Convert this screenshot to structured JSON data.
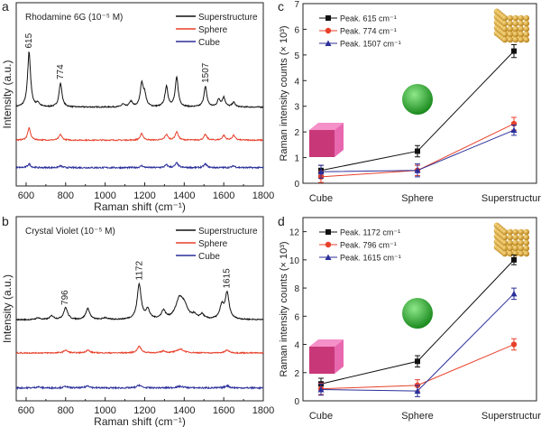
{
  "colors": {
    "superstructure": "#111111",
    "sphere": "#e8412b",
    "cube": "#2b2f9a",
    "axis": "#222222"
  },
  "chart_data": [
    {
      "panel": "a",
      "type": "line",
      "title": "Rhodamine 6G (10⁻⁵ M)",
      "xlabel": "Raman shift (cm⁻¹)",
      "ylabel": "Intensity (a.u.)",
      "xlim": [
        550,
        1800
      ],
      "ylim": [
        0,
        1
      ],
      "xticks": [
        "600",
        "800",
        "1000",
        "1200",
        "1400",
        "1600",
        "1800"
      ],
      "legend": "top-right",
      "annotations": [
        "615",
        "774",
        "1507"
      ],
      "series": [
        {
          "name": "Superstructure",
          "baseline": 0.43,
          "peaks": [
            [
              615,
              0.3
            ],
            [
              660,
              0.02
            ],
            [
              774,
              0.13
            ],
            [
              1090,
              0.015
            ],
            [
              1130,
              0.03
            ],
            [
              1185,
              0.125
            ],
            [
              1200,
              0.06
            ],
            [
              1310,
              0.11
            ],
            [
              1362,
              0.16
            ],
            [
              1507,
              0.11
            ],
            [
              1575,
              0.04
            ],
            [
              1600,
              0.05
            ],
            [
              1650,
              0.025
            ]
          ]
        },
        {
          "name": "Sphere",
          "baseline": 0.25,
          "peaks": [
            [
              615,
              0.065
            ],
            [
              774,
              0.03
            ],
            [
              1185,
              0.035
            ],
            [
              1310,
              0.03
            ],
            [
              1362,
              0.045
            ],
            [
              1507,
              0.03
            ],
            [
              1600,
              0.025
            ],
            [
              1650,
              0.025
            ]
          ]
        },
        {
          "name": "Cube",
          "baseline": 0.1,
          "peaks": [
            [
              615,
              0.02
            ],
            [
              774,
              0.01
            ],
            [
              1185,
              0.01
            ],
            [
              1310,
              0.015
            ],
            [
              1362,
              0.025
            ],
            [
              1507,
              0.02
            ],
            [
              1650,
              0.01
            ]
          ]
        }
      ]
    },
    {
      "panel": "b",
      "type": "line",
      "title": "Crystal Violet (10⁻⁵ M)",
      "xlabel": "Raman shift (cm⁻¹)",
      "ylabel": "Intensity (a.u.)",
      "xlim": [
        550,
        1800
      ],
      "ylim": [
        0,
        1
      ],
      "xticks": [
        "600",
        "800",
        "1000",
        "1200",
        "1400",
        "1600",
        "1800"
      ],
      "legend": "top-right",
      "annotations": [
        "796",
        "1172",
        "1615"
      ],
      "series": [
        {
          "name": "Superstructure",
          "baseline": 0.44,
          "peaks": [
            [
              660,
              0.01
            ],
            [
              730,
              0.02
            ],
            [
              800,
              0.065
            ],
            [
              912,
              0.06
            ],
            [
              1000,
              0.01
            ],
            [
              1172,
              0.19
            ],
            [
              1215,
              0.05
            ],
            [
              1295,
              0.045
            ],
            [
              1375,
              0.1
            ],
            [
              1400,
              0.06
            ],
            [
              1450,
              0.02
            ],
            [
              1490,
              0.025
            ],
            [
              1590,
              0.07
            ],
            [
              1617,
              0.14
            ]
          ]
        },
        {
          "name": "Sphere",
          "baseline": 0.26,
          "peaks": [
            [
              800,
              0.015
            ],
            [
              912,
              0.015
            ],
            [
              1172,
              0.035
            ],
            [
              1295,
              0.01
            ],
            [
              1380,
              0.02
            ],
            [
              1617,
              0.015
            ]
          ]
        },
        {
          "name": "Cube",
          "baseline": 0.07,
          "peaks": [
            [
              660,
              0.006
            ],
            [
              800,
              0.008
            ],
            [
              912,
              0.012
            ],
            [
              1172,
              0.015
            ],
            [
              1380,
              0.008
            ],
            [
              1617,
              0.012
            ]
          ]
        }
      ]
    },
    {
      "panel": "c",
      "type": "line",
      "ylabel": "Raman intensity counts (× 10³)",
      "ylim": [
        0,
        7
      ],
      "yticks": [
        "0",
        "1",
        "2",
        "3",
        "4",
        "5",
        "6",
        "7"
      ],
      "categories": [
        "Cube",
        "Sphere",
        "Superstructure"
      ],
      "legend": "top-left",
      "series": [
        {
          "name": "Peak. 615 cm⁻¹",
          "marker": "square",
          "values": [
            0.5,
            1.25,
            5.15
          ],
          "errors": [
            0.2,
            0.22,
            0.25
          ]
        },
        {
          "name": "Peak. 774 cm⁻¹",
          "marker": "circle",
          "values": [
            0.25,
            0.5,
            2.32
          ],
          "errors": [
            0.22,
            0.2,
            0.25
          ]
        },
        {
          "name": "Peak. 1507 cm⁻¹",
          "marker": "triangle",
          "values": [
            0.45,
            0.5,
            2.07
          ],
          "errors": [
            0.25,
            0.25,
            0.2
          ]
        }
      ]
    },
    {
      "panel": "d",
      "type": "line",
      "ylabel": "Raman intensity counts (× 10³)",
      "ylim": [
        0,
        13
      ],
      "yticks": [
        "0",
        "2",
        "4",
        "6",
        "8",
        "10",
        "12"
      ],
      "categories": [
        "Cube",
        "Sphere",
        "Superstructure"
      ],
      "legend": "top-left",
      "series": [
        {
          "name": "Peak. 1172 cm⁻¹",
          "marker": "square",
          "values": [
            1.2,
            2.8,
            10.0
          ],
          "errors": [
            0.4,
            0.4,
            0.35
          ]
        },
        {
          "name": "Peak. 796 cm⁻¹",
          "marker": "circle",
          "values": [
            0.85,
            1.1,
            4.0
          ],
          "errors": [
            0.4,
            0.4,
            0.4
          ]
        },
        {
          "name": "Peak. 1615 cm⁻¹",
          "marker": "triangle",
          "values": [
            0.8,
            0.7,
            7.6
          ],
          "errors": [
            0.4,
            0.4,
            0.4
          ]
        }
      ]
    }
  ]
}
